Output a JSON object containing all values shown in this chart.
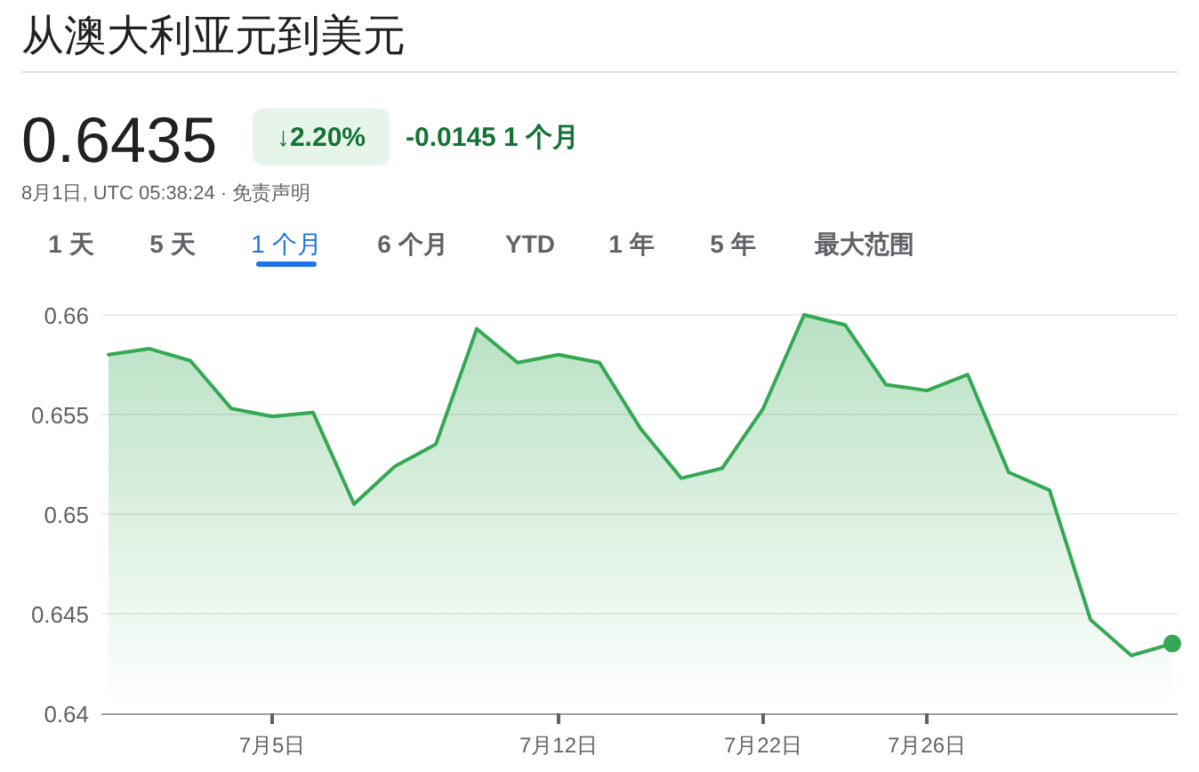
{
  "chart_data": {
    "type": "area",
    "title": "从澳大利亚元到美元",
    "annotations": [
      "0.6435",
      "↓2.20%",
      "-0.0145 1 个月",
      "8月1日, UTC 05:38:24 · 免责声明",
      "1 天",
      "5 天",
      "1 个月",
      "6 个月",
      "YTD",
      "1 年",
      "5 年",
      "最大范围"
    ],
    "categories": [
      null,
      null,
      null,
      null,
      "7月5日",
      null,
      null,
      null,
      null,
      null,
      null,
      "7月12日",
      null,
      null,
      null,
      null,
      "7月22日",
      null,
      null,
      null,
      "7月26日",
      null,
      null,
      null,
      null,
      null,
      null
    ],
    "series": [
      {
        "color": "#34a853",
        "values": [
          0.658,
          0.6583,
          0.6577,
          0.6553,
          0.6549,
          0.6551,
          0.6505,
          0.6524,
          0.6535,
          0.6593,
          0.6576,
          0.658,
          0.6576,
          0.6543,
          0.6518,
          0.6523,
          0.6553,
          0.66,
          0.6595,
          0.6565,
          0.6562,
          0.657,
          0.6521,
          0.6512,
          0.6447,
          0.6429,
          0.6435
        ]
      },
      {
        "type": "scatter",
        "color": "#34a853",
        "values": [
          null,
          null,
          null,
          null,
          null,
          null,
          null,
          null,
          null,
          null,
          null,
          null,
          null,
          null,
          null,
          null,
          null,
          null,
          null,
          null,
          null,
          null,
          null,
          null,
          null,
          null,
          0.6435
        ]
      }
    ],
    "ylim": [
      0.64,
      0.66
    ],
    "yticks": [
      0.64,
      0.645,
      0.65,
      0.655,
      0.66
    ],
    "grid": "y"
  }
}
